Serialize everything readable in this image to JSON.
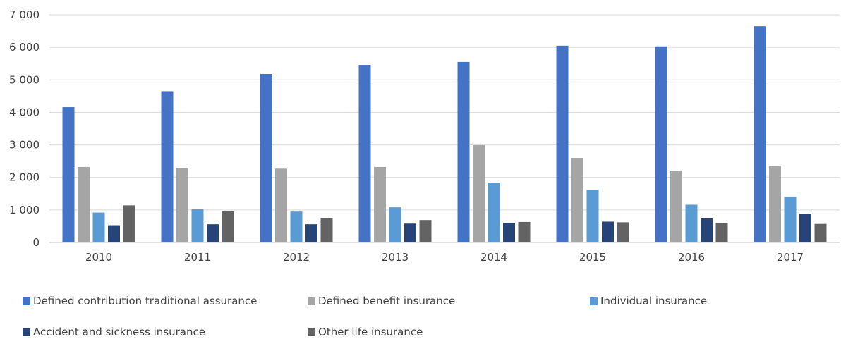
{
  "chart_data": {
    "type": "bar",
    "categories": [
      "2010",
      "2011",
      "2012",
      "2013",
      "2014",
      "2015",
      "2016",
      "2017"
    ],
    "series": [
      {
        "name": "Defined contribution traditional assurance",
        "color": "#4472c4",
        "values": [
          4160,
          4650,
          5180,
          5460,
          5550,
          6050,
          6030,
          6650
        ]
      },
      {
        "name": "Defined benefit insurance",
        "color": "#a5a5a5",
        "values": [
          2320,
          2290,
          2270,
          2320,
          2990,
          2600,
          2210,
          2360
        ]
      },
      {
        "name": "Individual insurance",
        "color": "#5b9bd5",
        "values": [
          920,
          1020,
          950,
          1080,
          1840,
          1620,
          1160,
          1410
        ]
      },
      {
        "name": "Accident and sickness insurance",
        "color": "#264478",
        "values": [
          530,
          560,
          560,
          580,
          600,
          640,
          740,
          880
        ]
      },
      {
        "name": "Other life insurance",
        "color": "#636363",
        "values": [
          1140,
          960,
          750,
          690,
          630,
          620,
          600,
          570
        ]
      }
    ],
    "ylim": [
      0,
      7000
    ],
    "yticks": [
      0,
      1000,
      2000,
      3000,
      4000,
      5000,
      6000,
      7000
    ],
    "ytick_labels": [
      "0",
      "1 000",
      "2 000",
      "3 000",
      "4 000",
      "5 000",
      "6 000",
      "7 000"
    ],
    "title": "",
    "xlabel": "",
    "ylabel": "",
    "grid": true,
    "legend_position": "bottom"
  }
}
